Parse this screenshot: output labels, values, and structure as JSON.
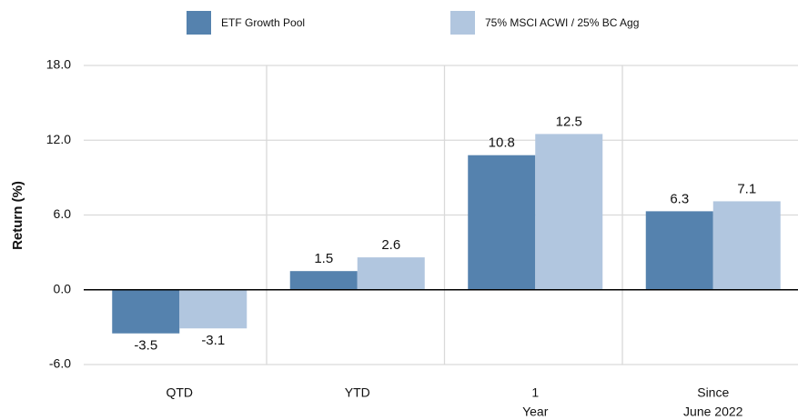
{
  "chart_data": {
    "type": "bar",
    "y_label": "Return (%)",
    "categories": [
      [
        "QTD"
      ],
      [
        "YTD"
      ],
      [
        "1",
        "Year"
      ],
      [
        "Since",
        "June 2022"
      ]
    ],
    "series": [
      {
        "name": "ETF Growth Pool",
        "color": "#5582ae",
        "values": [
          -3.5,
          1.5,
          10.8,
          6.3
        ]
      },
      {
        "name": "75% MSCI ACWI / 25% BC Agg",
        "color": "#b1c6df",
        "values": [
          -3.1,
          2.6,
          12.5,
          7.1
        ]
      }
    ],
    "ylim": [
      -6,
      18
    ],
    "yticks": [
      {
        "value": -6,
        "label": "-6.0"
      },
      {
        "value": 0,
        "label": "0.0"
      },
      {
        "value": 6,
        "label": "6.0"
      },
      {
        "value": 12,
        "label": "12.0"
      },
      {
        "value": 18,
        "label": "18.0"
      }
    ],
    "grid": true
  }
}
